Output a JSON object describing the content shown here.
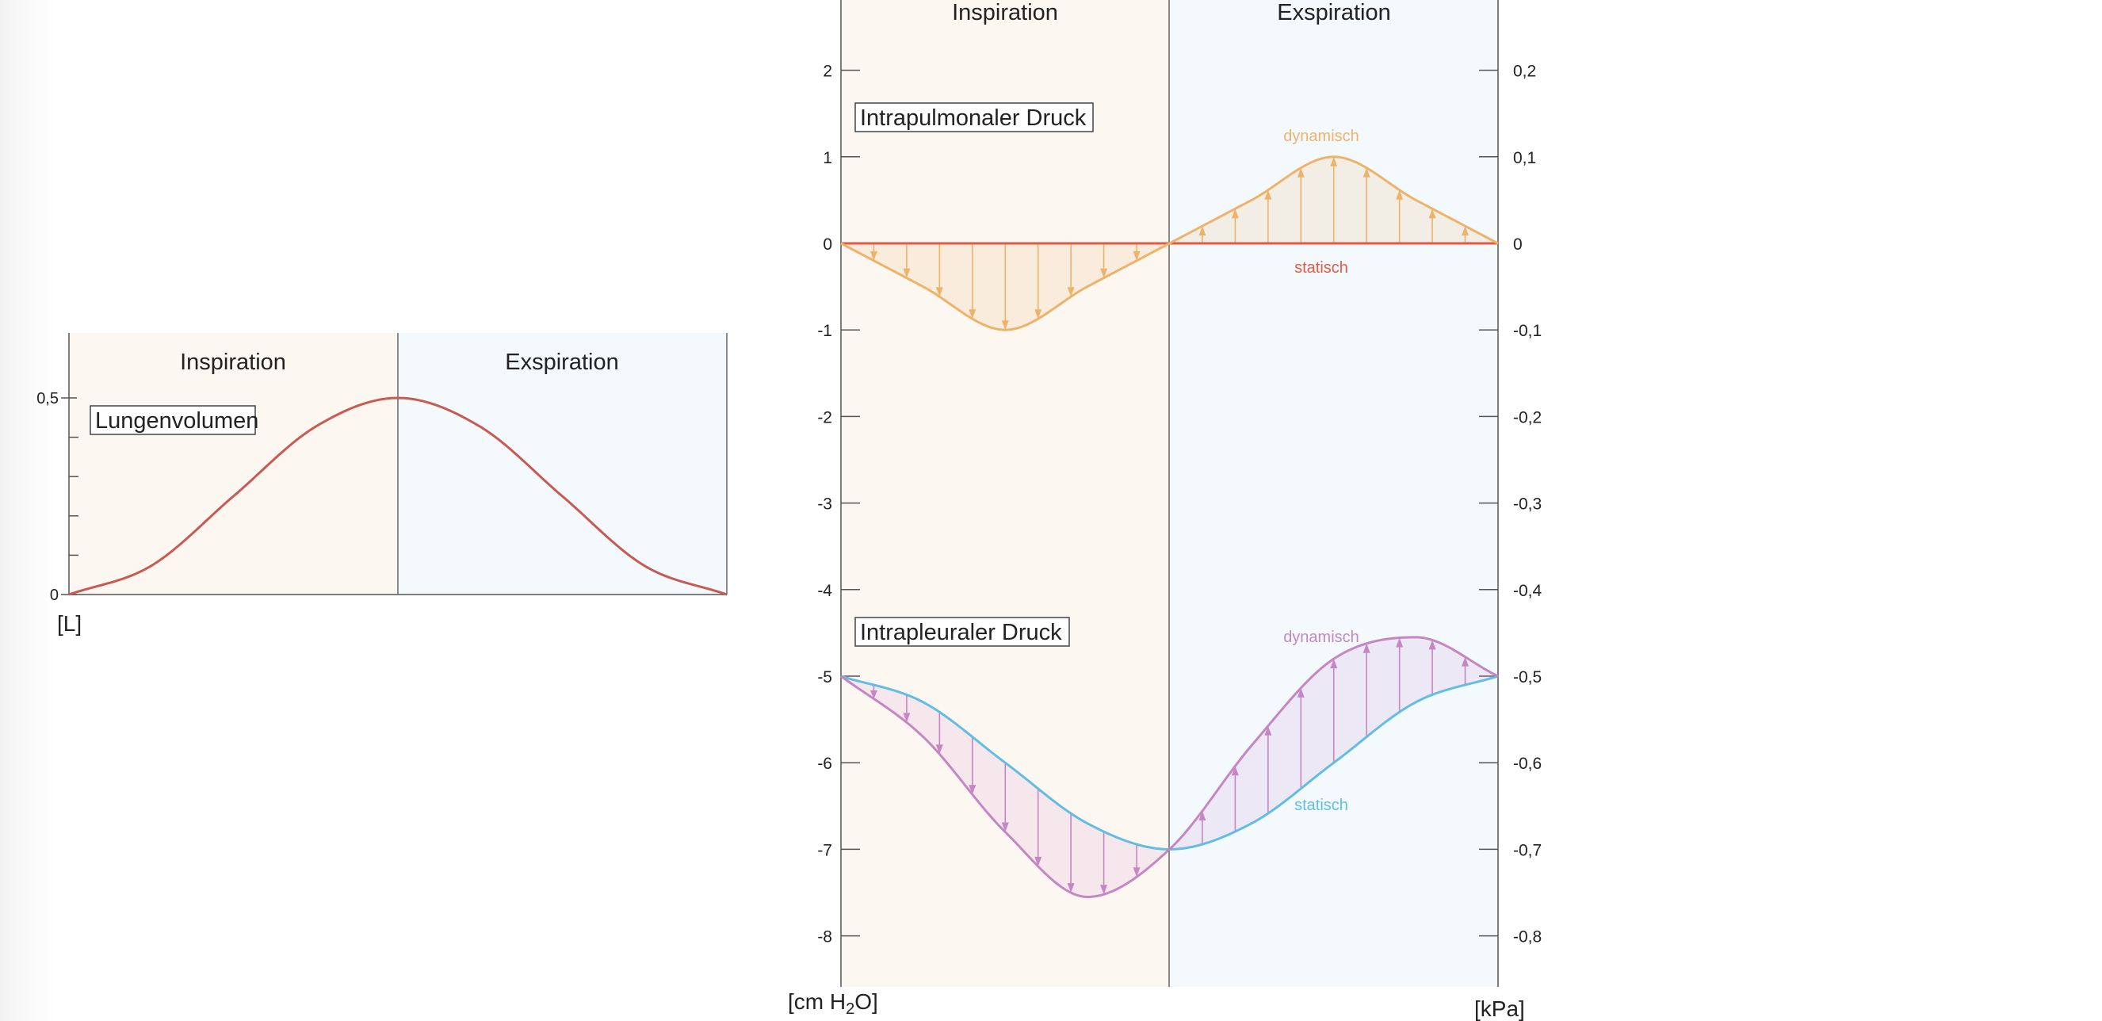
{
  "colors": {
    "inspiration_bg": "#fdf7f2",
    "exspiration_bg": "#f4f9fd",
    "axis": "#555555",
    "volume": "#c85a52",
    "intrapulm_dynamic": "#eeb36a",
    "intrapulm_static": "#e05b45",
    "intrapleural_dynamic": "#c587c3",
    "intrapleural_static": "#63bde3"
  },
  "chart_data": [
    {
      "type": "line",
      "phases": [
        "Inspiration",
        "Exspiration"
      ],
      "box_label": "Lungenvolumen",
      "y_unit": "[L]",
      "ylim": [
        0,
        0.5
      ],
      "y_ticks": [
        {
          "v": 0,
          "label": "0"
        },
        {
          "v": 0.5,
          "label": "0,5"
        }
      ],
      "y_minor_ticks": [
        0.1,
        0.2,
        0.3,
        0.4
      ],
      "x_range": [
        0,
        2
      ],
      "series": [
        {
          "key": "volume",
          "x": [
            0,
            0.25,
            0.5,
            0.75,
            1,
            1.25,
            1.5,
            1.75,
            2
          ],
          "values": [
            0,
            0.073,
            0.25,
            0.427,
            0.5,
            0.427,
            0.25,
            0.073,
            0
          ]
        }
      ]
    },
    {
      "type": "line",
      "phases": [
        "Inspiration",
        "Exspiration"
      ],
      "ylim": [
        -8.6,
        2.8
      ],
      "x_range": [
        0,
        2
      ],
      "left_unit": "[cm H",
      "left_unit_sub": "2",
      "left_unit_end": "O]",
      "right_unit": "[kPa]",
      "left_ticks": [
        {
          "v": 2,
          "label": "2"
        },
        {
          "v": 1,
          "label": "1"
        },
        {
          "v": 0,
          "label": "0"
        },
        {
          "v": -1,
          "label": "-1"
        },
        {
          "v": -2,
          "label": "-2"
        },
        {
          "v": -3,
          "label": "-3"
        },
        {
          "v": -4,
          "label": "-4"
        },
        {
          "v": -5,
          "label": "-5"
        },
        {
          "v": -6,
          "label": "-6"
        },
        {
          "v": -7,
          "label": "-7"
        },
        {
          "v": -8,
          "label": "-8"
        }
      ],
      "right_ticks": [
        {
          "v": 2,
          "label": "0,2"
        },
        {
          "v": 1,
          "label": "0,1"
        },
        {
          "v": 0,
          "label": "0"
        },
        {
          "v": -1,
          "label": "-0,1"
        },
        {
          "v": -2,
          "label": "-0,2"
        },
        {
          "v": -3,
          "label": "-0,3"
        },
        {
          "v": -4,
          "label": "-0,4"
        },
        {
          "v": -5,
          "label": "-0,5"
        },
        {
          "v": -6,
          "label": "-0,6"
        },
        {
          "v": -7,
          "label": "-0,7"
        },
        {
          "v": -8,
          "label": "-0,8"
        }
      ],
      "panels": [
        {
          "key": "intrapulm",
          "box_label": "Intrapulmonaler Druck",
          "dynamic_label": "dynamisch",
          "static_label": "statisch",
          "dynamic": {
            "x": [
              0,
              0.25,
              0.5,
              0.75,
              1,
              1.25,
              1.5,
              1.75,
              2
            ],
            "values": [
              0,
              -0.5,
              -1,
              -0.5,
              0,
              0.5,
              1,
              0.5,
              0
            ]
          },
          "static": {
            "x": [
              0,
              2
            ],
            "values": [
              0,
              0
            ]
          }
        },
        {
          "key": "intrapleural",
          "box_label": "Intrapleuraler Druck",
          "dynamic_label": "dynamisch",
          "static_label": "statisch",
          "dynamic": {
            "x": [
              0,
              0.25,
              0.5,
              0.75,
              1,
              1.25,
              1.5,
              1.75,
              2
            ],
            "values": [
              -5,
              -5.7,
              -6.8,
              -7.55,
              -7.0,
              -5.8,
              -4.8,
              -4.55,
              -5.0
            ]
          },
          "static": {
            "x": [
              0,
              0.25,
              0.5,
              0.75,
              1,
              1.25,
              1.5,
              1.75,
              2
            ],
            "values": [
              -5,
              -5.3,
              -6.0,
              -6.7,
              -7.0,
              -6.7,
              -6.0,
              -5.3,
              -5.0
            ]
          }
        }
      ]
    }
  ]
}
